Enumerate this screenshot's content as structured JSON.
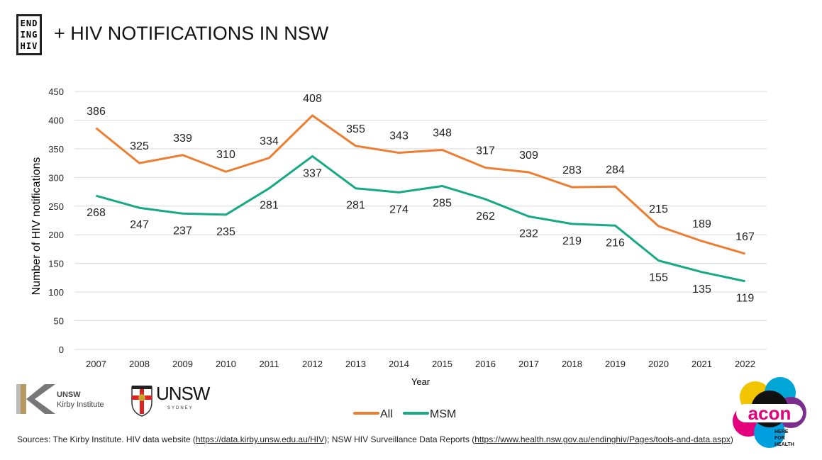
{
  "header": {
    "logo_lines": [
      "END",
      "ING",
      "HIV"
    ],
    "title": "+ HIV NOTIFICATIONS IN NSW"
  },
  "chart_data": {
    "type": "line",
    "categories": [
      "2007",
      "2008",
      "2009",
      "2010",
      "2011",
      "2012",
      "2013",
      "2014",
      "2015",
      "2016",
      "2017",
      "2018",
      "2019",
      "2020",
      "2021",
      "2022"
    ],
    "series": [
      {
        "name": "All",
        "color": "#ED7D31",
        "values": [
          386,
          325,
          339,
          310,
          334,
          408,
          355,
          343,
          348,
          317,
          309,
          283,
          284,
          215,
          189,
          167
        ]
      },
      {
        "name": "MSM",
        "color": "#17A884",
        "values": [
          268,
          247,
          237,
          235,
          281,
          337,
          281,
          274,
          285,
          262,
          232,
          219,
          216,
          155,
          135,
          119
        ]
      }
    ],
    "xlabel": "Year",
    "ylabel": "Number of HIV notifications",
    "ylim": [
      0,
      450
    ],
    "yticks": [
      0,
      50,
      100,
      150,
      200,
      250,
      300,
      350,
      400,
      450
    ],
    "grid": true,
    "legend": "bottom",
    "data_labels": true
  },
  "footer": {
    "kirby_lines": [
      "UNSW",
      "Kirby Institute"
    ],
    "unsw": "UNSW",
    "unsw_sub": "SYDNEY",
    "sources_label": "Sources:",
    "source1": "The Kirby Institute. HIV data website (",
    "link1": "https://data.kirby.unsw.edu.au/HIV",
    "source2": "); NSW HIV Surveillance Data  Reports (",
    "link2": "https://www.health.nsw.gov.au/endinghiv/Pages/tools-and-data.aspx",
    "source3": ")",
    "acon": "acon",
    "acon_tag": [
      "HERE",
      "FOR",
      "HEALTH"
    ]
  }
}
